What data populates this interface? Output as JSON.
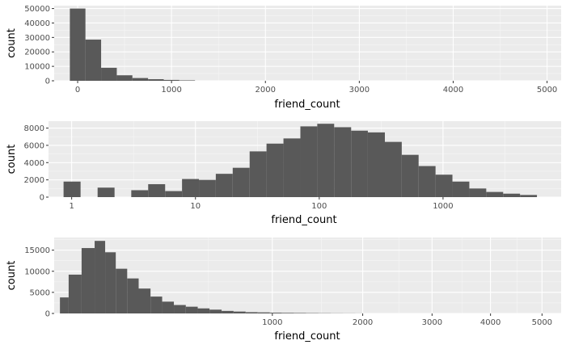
{
  "chart_data": [
    {
      "type": "bar",
      "scale": "linear",
      "xlabel": "friend_count",
      "ylabel": "count",
      "xlim": [
        -250,
        5150
      ],
      "ylim": [
        0,
        52000
      ],
      "grid": true,
      "x_ticks": [
        0,
        1000,
        2000,
        3000,
        4000,
        5000
      ],
      "x_tick_labels": [
        "0",
        "1000",
        "2000",
        "3000",
        "4000",
        "5000"
      ],
      "y_ticks": [
        0,
        10000,
        20000,
        30000,
        40000,
        50000
      ],
      "y_tick_labels": [
        "0",
        "10000",
        "20000",
        "30000",
        "40000",
        "50000"
      ],
      "bin_width": 167,
      "bins": [
        {
          "x0": -83,
          "x1": 83,
          "count": 50000
        },
        {
          "x0": 83,
          "x1": 250,
          "count": 28500
        },
        {
          "x0": 250,
          "x1": 417,
          "count": 9000
        },
        {
          "x0": 417,
          "x1": 583,
          "count": 3800
        },
        {
          "x0": 583,
          "x1": 750,
          "count": 1900
        },
        {
          "x0": 750,
          "x1": 917,
          "count": 1100
        },
        {
          "x0": 917,
          "x1": 1083,
          "count": 600
        },
        {
          "x0": 1083,
          "x1": 1250,
          "count": 300
        }
      ]
    },
    {
      "type": "bar",
      "scale": "log10",
      "xlabel": "friend_count",
      "ylabel": "count",
      "xlim": [
        0.65,
        9000
      ],
      "ylim": [
        0,
        8800
      ],
      "grid": true,
      "x_ticks": [
        1,
        10,
        100,
        1000
      ],
      "x_tick_labels": [
        "1",
        "10",
        "100",
        "1000"
      ],
      "y_ticks": [
        0,
        2000,
        4000,
        6000,
        8000
      ],
      "y_tick_labels": [
        "0",
        "2000",
        "4000",
        "6000",
        "8000"
      ],
      "bins": [
        {
          "x0": 0.86,
          "x1": 1.18,
          "count": 1800
        },
        {
          "x0": 1.18,
          "x1": 1.62,
          "count": 0
        },
        {
          "x0": 1.62,
          "x1": 2.22,
          "count": 1100
        },
        {
          "x0": 2.22,
          "x1": 3.03,
          "count": 0
        },
        {
          "x0": 3.03,
          "x1": 4.15,
          "count": 800
        },
        {
          "x0": 4.15,
          "x1": 5.69,
          "count": 1500
        },
        {
          "x0": 5.69,
          "x1": 7.79,
          "count": 700
        },
        {
          "x0": 7.79,
          "x1": 10.67,
          "count": 2100
        },
        {
          "x0": 10.67,
          "x1": 14.6,
          "count": 2000
        },
        {
          "x0": 14.6,
          "x1": 20.0,
          "count": 2700
        },
        {
          "x0": 20.0,
          "x1": 27.4,
          "count": 3400
        },
        {
          "x0": 27.4,
          "x1": 37.5,
          "count": 5300
        },
        {
          "x0": 37.5,
          "x1": 51.4,
          "count": 6200
        },
        {
          "x0": 51.4,
          "x1": 70.4,
          "count": 6800
        },
        {
          "x0": 70.4,
          "x1": 96.4,
          "count": 8200
        },
        {
          "x0": 96.4,
          "x1": 132,
          "count": 8500
        },
        {
          "x0": 132,
          "x1": 181,
          "count": 8100
        },
        {
          "x0": 181,
          "x1": 247,
          "count": 7700
        },
        {
          "x0": 247,
          "x1": 339,
          "count": 7500
        },
        {
          "x0": 339,
          "x1": 464,
          "count": 6400
        },
        {
          "x0": 464,
          "x1": 635,
          "count": 4900
        },
        {
          "x0": 635,
          "x1": 870,
          "count": 3600
        },
        {
          "x0": 870,
          "x1": 1191,
          "count": 2600
        },
        {
          "x0": 1191,
          "x1": 1631,
          "count": 1800
        },
        {
          "x0": 1631,
          "x1": 2234,
          "count": 1000
        },
        {
          "x0": 2234,
          "x1": 3059,
          "count": 600
        },
        {
          "x0": 3059,
          "x1": 4189,
          "count": 400
        },
        {
          "x0": 4189,
          "x1": 5737,
          "count": 250
        }
      ]
    },
    {
      "type": "bar",
      "scale": "sqrt",
      "xlabel": "friend_count",
      "ylabel": "count",
      "xlim": [
        0,
        5400
      ],
      "ylim": [
        0,
        18000
      ],
      "grid": true,
      "x_ticks": [
        1000,
        2000,
        3000,
        4000,
        5000
      ],
      "x_tick_labels": [
        "1000",
        "2000",
        "3000",
        "4000",
        "5000"
      ],
      "y_ticks": [
        0,
        5000,
        10000,
        15000
      ],
      "y_tick_labels": [
        "0",
        "5000",
        "10000",
        "15000"
      ],
      "bins": [
        {
          "x0": 0.7,
          "x1": 4.4,
          "count": 3800
        },
        {
          "x0": 4.4,
          "x1": 15.8,
          "count": 9200
        },
        {
          "x0": 15.8,
          "x1": 34.4,
          "count": 15500
        },
        {
          "x0": 34.4,
          "x1": 54.6,
          "count": 17200
        },
        {
          "x0": 54.6,
          "x1": 79.7,
          "count": 14500
        },
        {
          "x0": 79.7,
          "x1": 112,
          "count": 10600
        },
        {
          "x0": 112,
          "x1": 150,
          "count": 8300
        },
        {
          "x0": 150,
          "x1": 195,
          "count": 5900
        },
        {
          "x0": 195,
          "x1": 245,
          "count": 4000
        },
        {
          "x0": 245,
          "x1": 301,
          "count": 2800
        },
        {
          "x0": 301,
          "x1": 364,
          "count": 2000
        },
        {
          "x0": 364,
          "x1": 433,
          "count": 1600
        },
        {
          "x0": 433,
          "x1": 507,
          "count": 1200
        },
        {
          "x0": 507,
          "x1": 589,
          "count": 900
        },
        {
          "x0": 589,
          "x1": 676,
          "count": 600
        },
        {
          "x0": 676,
          "x1": 770,
          "count": 450
        },
        {
          "x0": 770,
          "x1": 870,
          "count": 300
        },
        {
          "x0": 870,
          "x1": 977,
          "count": 250
        },
        {
          "x0": 977,
          "x1": 1090,
          "count": 180
        },
        {
          "x0": 1090,
          "x1": 1209,
          "count": 140
        },
        {
          "x0": 1209,
          "x1": 1335,
          "count": 110
        },
        {
          "x0": 1335,
          "x1": 1468,
          "count": 80
        },
        {
          "x0": 1468,
          "x1": 1607,
          "count": 60
        },
        {
          "x0": 1607,
          "x1": 1753,
          "count": 40
        },
        {
          "x0": 1753,
          "x1": 1905,
          "count": 30
        },
        {
          "x0": 1905,
          "x1": 2000,
          "count": 20
        }
      ]
    }
  ]
}
